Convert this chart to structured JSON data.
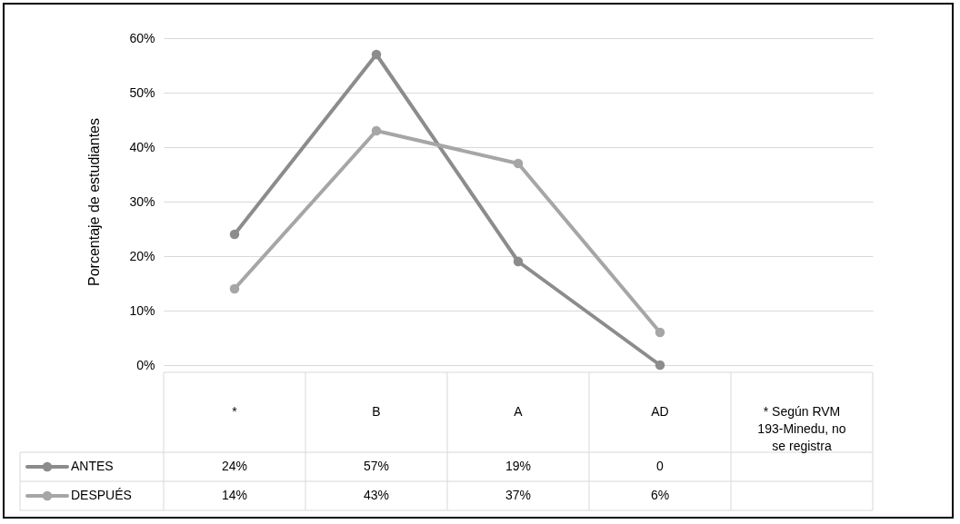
{
  "chart_data": {
    "type": "line",
    "ylabel": "Porcentaje de estudiantes",
    "categories": [
      "*",
      "B",
      "A",
      "AD",
      "* Según RVM 193-Minedu, no se registra"
    ],
    "series": [
      {
        "name": "ANTES",
        "color": "#8c8c8c",
        "values": [
          24,
          57,
          19,
          0,
          null
        ],
        "value_labels": [
          "24%",
          "57%",
          "19%",
          "0",
          null
        ]
      },
      {
        "name": "DESPUÉS",
        "color": "#a6a6a6",
        "values": [
          14,
          43,
          37,
          6,
          null
        ],
        "value_labels": [
          "14%",
          "43%",
          "37%",
          "6%",
          null
        ]
      }
    ],
    "ylim": [
      0,
      60
    ],
    "yticks": [
      {
        "value": 0,
        "label": "0%"
      },
      {
        "value": 10,
        "label": "10%"
      },
      {
        "value": 20,
        "label": "20%"
      },
      {
        "value": 30,
        "label": "30%"
      },
      {
        "value": 40,
        "label": "40%"
      },
      {
        "value": 50,
        "label": "50%"
      },
      {
        "value": 60,
        "label": "60%"
      }
    ],
    "grid": "y",
    "marker": "circle",
    "legend": "bottom left"
  }
}
